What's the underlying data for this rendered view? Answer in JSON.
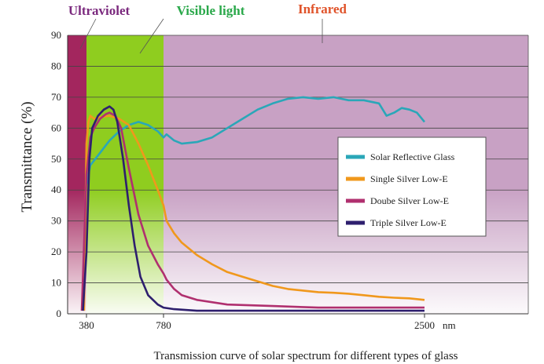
{
  "chart_data": {
    "type": "line",
    "title": "",
    "caption": "Transmission curve of solar spectrum for different types of glass",
    "ylabel": "Transmittance (%)",
    "x_unit": "nm",
    "ylim": [
      0,
      90
    ],
    "y_ticks": [
      0,
      10,
      20,
      30,
      40,
      50,
      60,
      70,
      80,
      90
    ],
    "x_ticks": [
      380,
      780,
      2500
    ],
    "x_tick_labels": [
      "380",
      "780",
      "2500"
    ],
    "grid": true,
    "legend_position": "right",
    "regions": [
      {
        "name": "Ultraviolet",
        "color": "#a3265e"
      },
      {
        "name": "Visible light",
        "color": "#8fcd1f"
      },
      {
        "name": "Infrared",
        "color": "#c8a1c4"
      }
    ],
    "region_label_colors": [
      "#7b2a7e",
      "#2aa84a",
      "#e0532a"
    ],
    "series": [
      {
        "name": "Solar Reflective Glass",
        "color": "#2aa7b8",
        "points": [
          [
            380,
            42
          ],
          [
            400,
            48
          ],
          [
            450,
            52
          ],
          [
            500,
            56
          ],
          [
            550,
            59
          ],
          [
            600,
            61
          ],
          [
            650,
            62
          ],
          [
            700,
            61
          ],
          [
            750,
            59
          ],
          [
            780,
            57
          ],
          [
            800,
            58
          ],
          [
            850,
            56
          ],
          [
            900,
            55
          ],
          [
            1000,
            55.5
          ],
          [
            1100,
            57
          ],
          [
            1200,
            60
          ],
          [
            1300,
            63
          ],
          [
            1400,
            66
          ],
          [
            1500,
            68
          ],
          [
            1600,
            69.5
          ],
          [
            1700,
            70
          ],
          [
            1800,
            69.5
          ],
          [
            1900,
            70
          ],
          [
            2000,
            69
          ],
          [
            2100,
            69
          ],
          [
            2200,
            68
          ],
          [
            2250,
            64
          ],
          [
            2300,
            65
          ],
          [
            2350,
            66.5
          ],
          [
            2400,
            66
          ],
          [
            2450,
            65
          ],
          [
            2500,
            62
          ]
        ]
      },
      {
        "name": "Single Silver Low-E",
        "color": "#f0981c",
        "points": [
          [
            370,
            1
          ],
          [
            380,
            55
          ],
          [
            390,
            62
          ],
          [
            400,
            64
          ],
          [
            420,
            63
          ],
          [
            450,
            63.5
          ],
          [
            500,
            64
          ],
          [
            550,
            63
          ],
          [
            600,
            61
          ],
          [
            650,
            55
          ],
          [
            700,
            48
          ],
          [
            750,
            40
          ],
          [
            780,
            35
          ],
          [
            800,
            30
          ],
          [
            850,
            26
          ],
          [
            900,
            23
          ],
          [
            1000,
            19
          ],
          [
            1100,
            16
          ],
          [
            1200,
            13.5
          ],
          [
            1300,
            12
          ],
          [
            1400,
            10.5
          ],
          [
            1500,
            9
          ],
          [
            1600,
            8
          ],
          [
            1700,
            7.5
          ],
          [
            1800,
            7
          ],
          [
            1900,
            6.8
          ],
          [
            2000,
            6.5
          ],
          [
            2100,
            6
          ],
          [
            2200,
            5.5
          ],
          [
            2300,
            5.2
          ],
          [
            2400,
            5
          ],
          [
            2500,
            4.5
          ]
        ]
      },
      {
        "name": "Doube Silver Low-E",
        "color": "#b0306f",
        "points": [
          [
            360,
            1
          ],
          [
            380,
            45
          ],
          [
            400,
            57
          ],
          [
            420,
            60
          ],
          [
            450,
            63
          ],
          [
            480,
            64.5
          ],
          [
            500,
            65
          ],
          [
            530,
            64
          ],
          [
            560,
            60
          ],
          [
            600,
            47
          ],
          [
            650,
            32
          ],
          [
            700,
            22
          ],
          [
            750,
            16
          ],
          [
            780,
            13
          ],
          [
            800,
            11
          ],
          [
            850,
            8
          ],
          [
            900,
            6
          ],
          [
            1000,
            4.5
          ],
          [
            1200,
            3
          ],
          [
            1500,
            2.5
          ],
          [
            1800,
            2
          ],
          [
            2100,
            2
          ],
          [
            2500,
            2
          ]
        ]
      },
      {
        "name": "Triple Silver Low-E",
        "color": "#2e1f6e",
        "points": [
          [
            365,
            1
          ],
          [
            380,
            20
          ],
          [
            395,
            50
          ],
          [
            410,
            60
          ],
          [
            440,
            64
          ],
          [
            470,
            66
          ],
          [
            500,
            67
          ],
          [
            520,
            66
          ],
          [
            540,
            62
          ],
          [
            570,
            50
          ],
          [
            600,
            35
          ],
          [
            630,
            22
          ],
          [
            660,
            12
          ],
          [
            700,
            6
          ],
          [
            750,
            3
          ],
          [
            780,
            2
          ],
          [
            850,
            1.5
          ],
          [
            1000,
            1
          ],
          [
            1500,
            1
          ],
          [
            2000,
            1
          ],
          [
            2500,
            1
          ]
        ]
      }
    ]
  }
}
